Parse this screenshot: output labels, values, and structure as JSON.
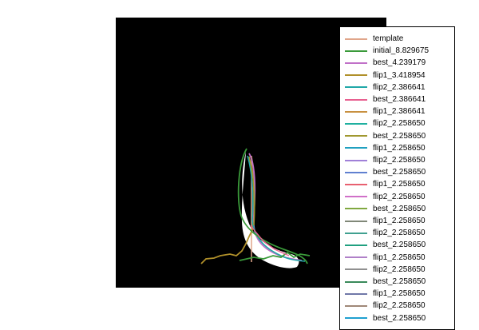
{
  "figure": {
    "background": "#ffffff",
    "plot_background": "#000000",
    "silhouette_color": "#ffffff"
  },
  "legend": {
    "placement": "right, overlapping plot",
    "entries": [
      {
        "label": "template",
        "color": "#e0a58a"
      },
      {
        "label": "initial_8.829675",
        "color": "#3a9a3a"
      },
      {
        "label": "best_4.239179",
        "color": "#c070c8"
      },
      {
        "label": "flip1_3.418954",
        "color": "#b0902a"
      },
      {
        "label": "flip2_2.386641",
        "color": "#20a8a8"
      },
      {
        "label": "best_2.386641",
        "color": "#e86090"
      },
      {
        "label": "flip1_2.386641",
        "color": "#c89040"
      },
      {
        "label": "flip2_2.258650",
        "color": "#20b0a0"
      },
      {
        "label": "best_2.258650",
        "color": "#a09830"
      },
      {
        "label": "flip1_2.258650",
        "color": "#20a0c0"
      },
      {
        "label": "flip2_2.258650",
        "color": "#a080d8"
      },
      {
        "label": "best_2.258650",
        "color": "#6080d0"
      },
      {
        "label": "flip1_2.258650",
        "color": "#e86070"
      },
      {
        "label": "flip2_2.258650",
        "color": "#d070c8"
      },
      {
        "label": "best_2.258650",
        "color": "#80a840"
      },
      {
        "label": "flip1_2.258650",
        "color": "#808878"
      },
      {
        "label": "flip2_2.258650",
        "color": "#40a090"
      },
      {
        "label": "best_2.258650",
        "color": "#20a080"
      },
      {
        "label": "flip1_2.258650",
        "color": "#b080c8"
      },
      {
        "label": "flip2_2.258650",
        "color": "#909090"
      },
      {
        "label": "best_2.258650",
        "color": "#3a8a5a"
      },
      {
        "label": "flip1_2.258650",
        "color": "#7078a8"
      },
      {
        "label": "flip2_2.258650",
        "color": "#a08878"
      },
      {
        "label": "best_2.258650",
        "color": "#20a0d0"
      }
    ]
  }
}
